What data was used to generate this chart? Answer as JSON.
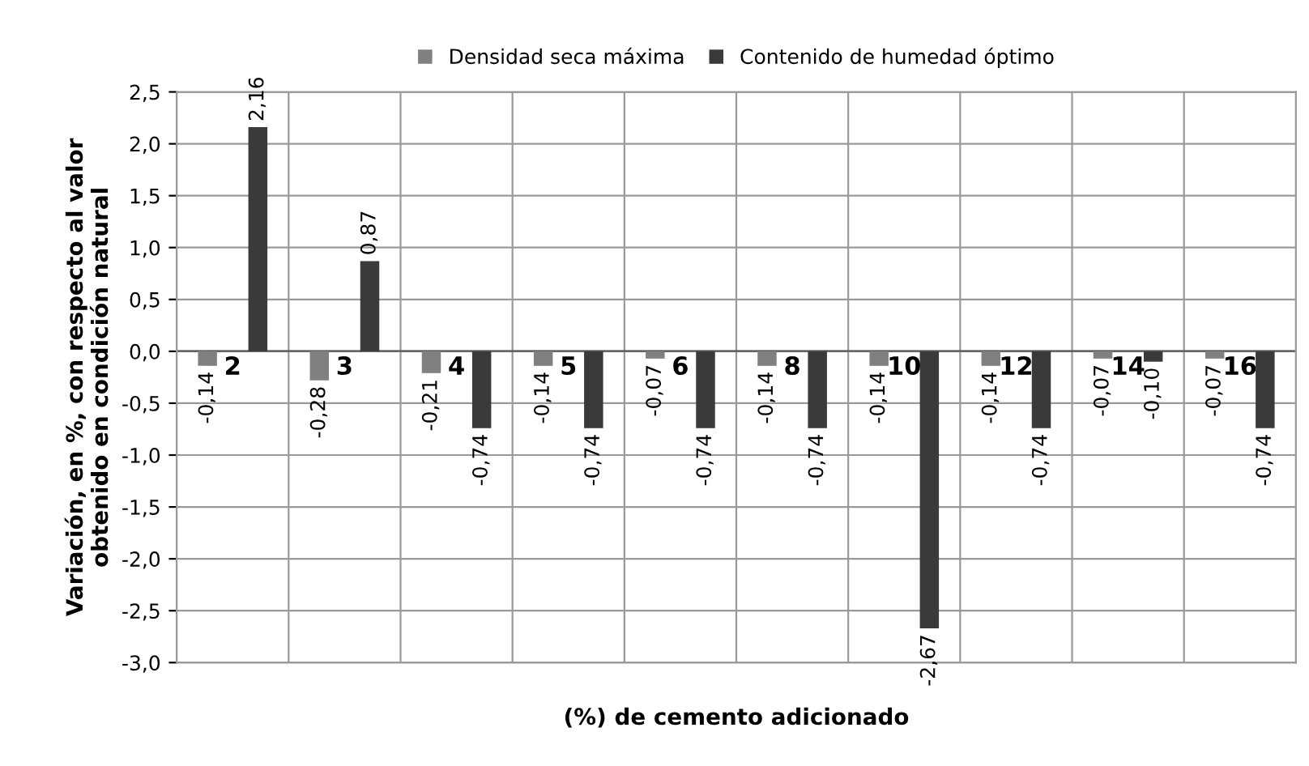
{
  "chart_data": {
    "type": "bar",
    "xlabel": "(%) de cemento adicionado",
    "ylabel": "Variación, en %, con respecto al valor\nobtenido en condición natural",
    "categories": [
      "2",
      "3",
      "4",
      "5",
      "6",
      "8",
      "10",
      "12",
      "14",
      "16"
    ],
    "series": [
      {
        "name": "Densidad seca máxima",
        "color": "#808080",
        "values": [
          -0.14,
          -0.28,
          -0.21,
          -0.14,
          -0.07,
          -0.14,
          -0.14,
          -0.14,
          -0.07,
          -0.07
        ],
        "value_labels": [
          "-0,14",
          "-0,28",
          "-0,21",
          "-0,14",
          "-0,07",
          "-0,14",
          "-0,14",
          "-0,14",
          "-0,07",
          "-0,07"
        ]
      },
      {
        "name": "Contenido de humedad óptimo",
        "color": "#3a3a3a",
        "values": [
          2.16,
          0.87,
          -0.74,
          -0.74,
          -0.74,
          -0.74,
          -2.67,
          -0.74,
          -0.1,
          -0.74
        ],
        "value_labels": [
          "2,16",
          "0,87",
          "-0,74",
          "-0,74",
          "-0,74",
          "-0,74",
          "-2,67",
          "-0,74",
          "-0,10",
          "-0,74"
        ]
      }
    ],
    "ylim": [
      -3.0,
      2.5
    ],
    "yticks": [
      {
        "value": -3.0,
        "label": "-3,0"
      },
      {
        "value": -2.5,
        "label": "-2,5"
      },
      {
        "value": -2.0,
        "label": "-2,0"
      },
      {
        "value": -1.5,
        "label": "-1,5"
      },
      {
        "value": -1.0,
        "label": "-1,0"
      },
      {
        "value": -0.5,
        "label": "-0,5"
      },
      {
        "value": 0.0,
        "label": "0,0"
      },
      {
        "value": 0.5,
        "label": "0,5"
      },
      {
        "value": 1.0,
        "label": "1,0"
      },
      {
        "value": 1.5,
        "label": "1,5"
      },
      {
        "value": 2.0,
        "label": "2,0"
      },
      {
        "value": 2.5,
        "label": "2,5"
      }
    ],
    "grid": true,
    "legend": "top"
  }
}
